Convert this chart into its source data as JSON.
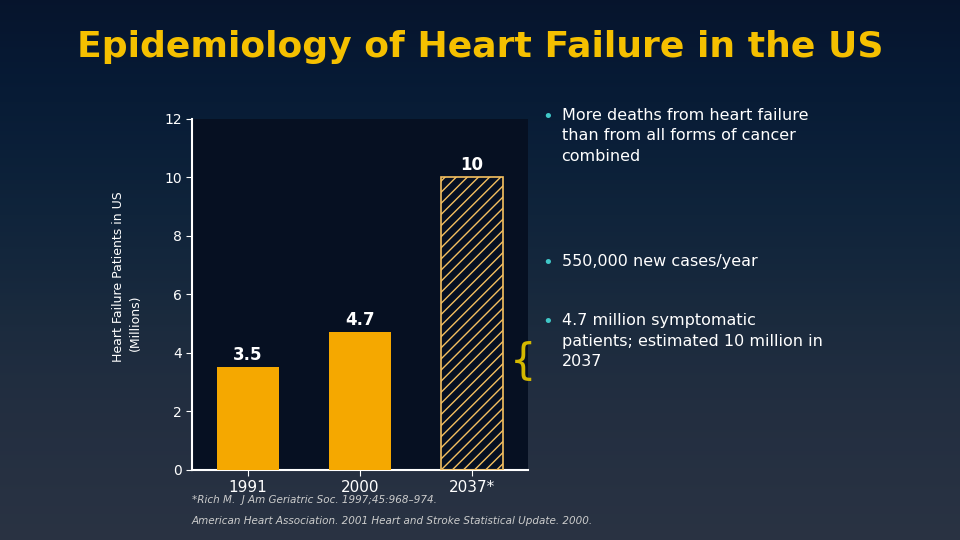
{
  "title": "Epidemiology of Heart Failure in the US",
  "title_color": "#F5C000",
  "title_fontsize": 26,
  "background_color": "#061022",
  "background_gradient_top": "#061022",
  "background_gradient_bottom": "#0d2444",
  "categories": [
    "1991",
    "2000",
    "2037*"
  ],
  "values": [
    3.5,
    4.7,
    10
  ],
  "bar_color_solid": "#F5A800",
  "bar_hatch_pattern": "///",
  "bar_hatch_color": "#F5C060",
  "ylabel_line1": "Heart Failure Patients in US",
  "ylabel_line2": "(Millions)",
  "ylabel_color": "#ffffff",
  "ylabel_fontsize": 9,
  "yticks": [
    0,
    2,
    4,
    6,
    8,
    10,
    12
  ],
  "ytick_color": "#ffffff",
  "xtick_color": "#ffffff",
  "xtick_fontsize": 11,
  "ylim": [
    0,
    12
  ],
  "value_labels": [
    "3.5",
    "4.7",
    "10"
  ],
  "value_label_color": "#ffffff",
  "value_label_fontsize": 12,
  "axis_color": "#ffffff",
  "axis_linewidth": 1.5,
  "bullet_color": "#40C8C8",
  "brace_color": "#D4B800",
  "bullet_texts": [
    "More deaths from heart failure\nthan from all forms of cancer\ncombined",
    "550,000 new cases/year",
    "4.7 million symptomatic\npatients; estimated 10 million in\n2037"
  ],
  "bullet_fontsize": 11.5,
  "bullet_text_color": "#ffffff",
  "footnote_line1": "*Rich M.  J Am Geriatric Soc. 1997;45:968–974.",
  "footnote_line2": "American Heart Association. 2001 Heart and Stroke Statistical Update. 2000.",
  "footnote_fontsize": 7.5,
  "footnote_color": "#cccccc"
}
